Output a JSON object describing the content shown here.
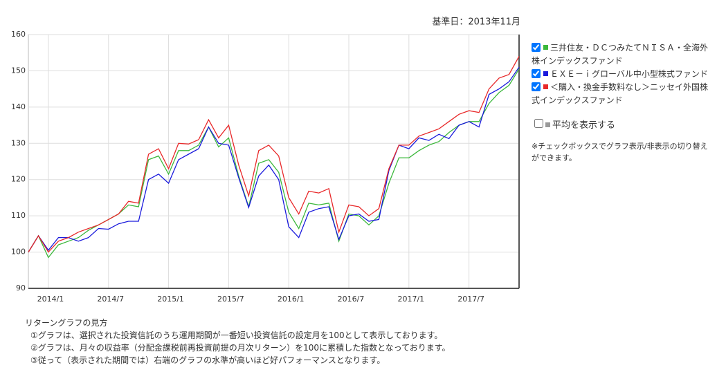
{
  "base_date": "基準日：2013年11月",
  "chart_data": {
    "type": "line",
    "categories": [
      null,
      null,
      "2014/1",
      null,
      null,
      null,
      null,
      null,
      "2014/7",
      null,
      null,
      null,
      null,
      null,
      "2015/1",
      null,
      null,
      null,
      null,
      null,
      "2015/7",
      null,
      null,
      null,
      null,
      null,
      "2016/1",
      null,
      null,
      null,
      null,
      null,
      "2016/7",
      null,
      null,
      null,
      null,
      null,
      "2017/1",
      null,
      null,
      null,
      null,
      null,
      "2017/7",
      null,
      null,
      null,
      null,
      null
    ],
    "series": [
      {
        "name": "三井住友・ＤＣつみたてＮＩＳＡ・全海外株インデックスファンド",
        "color": "#3cb83c",
        "values": [
          100,
          104.5,
          98.5,
          102,
          103,
          104,
          106,
          107.5,
          109,
          110.5,
          113,
          112.5,
          125.5,
          126.5,
          121.5,
          128,
          128,
          129.5,
          134.5,
          129,
          131.5,
          121,
          112.5,
          124.5,
          125.5,
          122,
          111,
          106.5,
          113.5,
          113,
          113.5,
          103,
          110.5,
          110,
          107.5,
          110,
          119,
          126,
          126,
          128,
          129.5,
          130.5,
          133,
          135,
          136,
          136,
          141,
          144,
          146,
          150.5
        ]
      },
      {
        "name": "ＥＸＥ－ｉグローバル中小型株式ファンド",
        "color": "#1a1adc",
        "values": [
          100,
          104.5,
          100.5,
          104,
          104,
          103,
          104,
          106.5,
          106.3,
          107.8,
          108.5,
          108.5,
          120,
          121.5,
          119,
          125.5,
          127,
          128.5,
          134.5,
          130,
          129.5,
          120.5,
          112.3,
          121,
          124,
          120,
          107,
          104,
          111,
          112,
          112.5,
          103.5,
          110,
          110.5,
          108.5,
          109,
          122.5,
          129.5,
          128.5,
          131.5,
          130.8,
          132.5,
          131.3,
          135,
          136,
          134.5,
          143.5,
          145,
          147,
          151
        ]
      },
      {
        "name": "＜購入・換金手数料なし＞ニッセイ外国株式インデックスファンド",
        "color": "#e8292a",
        "values": [
          100,
          104.5,
          100,
          103,
          104,
          105.5,
          106.5,
          107.5,
          109,
          110.5,
          114,
          113.5,
          127,
          128.5,
          123,
          130,
          129.8,
          131,
          136.5,
          131.5,
          135,
          124,
          115.5,
          128,
          129.5,
          126.5,
          115,
          110.5,
          116.8,
          116.3,
          117.5,
          105.5,
          113,
          112.5,
          110,
          112,
          123,
          129.5,
          129.5,
          132,
          133,
          134,
          136,
          138,
          139,
          138.5,
          145,
          148,
          149,
          154
        ]
      }
    ],
    "ylim": [
      90,
      160
    ],
    "yticks": [
      90,
      100,
      110,
      120,
      130,
      140,
      150,
      160
    ],
    "grid": true
  },
  "average": {
    "label": "平均を表示する",
    "color": "#999999"
  },
  "legend_note": "※チェックボックスでグラフ表示/非表示の切り替えができます。",
  "guide": {
    "title": "リターングラフの見方",
    "lines": [
      "①グラフは、選択された投資信託のうち運用期間が一番短い投資信託の設定月を100として表示しております。",
      "②グラフは、月々の収益率（分配金課税前再投資前提の月次リターン）を100に累積した指数となっております。",
      "③従って（表示された期間では）右端のグラフの水準が高いほど好パフォーマンスとなります。"
    ]
  }
}
